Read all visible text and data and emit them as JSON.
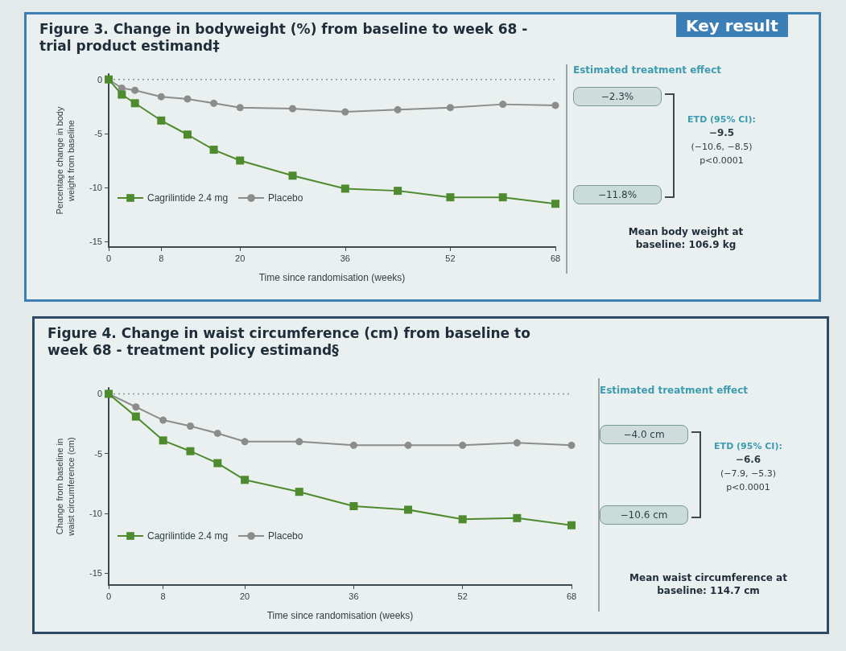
{
  "chart_data": [
    {
      "type": "line",
      "title": "Figure 3. Change in bodyweight (%) from baseline to week 68 - trial product estimand‡",
      "xlabel": "Time since randomisation (weeks)",
      "ylabel": "Percentage change in body\nweight from baseline",
      "x": [
        0,
        2,
        4,
        8,
        12,
        16,
        20,
        28,
        36,
        44,
        52,
        60,
        68
      ],
      "series": [
        {
          "name": "Cagrilintide 2.4 mg",
          "color": "#4e8a2e",
          "marker": "square",
          "values": [
            0,
            -1.4,
            -2.2,
            -3.8,
            -5.1,
            -6.5,
            -7.5,
            -8.9,
            -10.1,
            -10.3,
            -10.9,
            -10.9,
            -11.5
          ]
        },
        {
          "name": "Placebo",
          "color": "#8c8c8c",
          "marker": "circle",
          "values": [
            0,
            -0.8,
            -1.0,
            -1.6,
            -1.8,
            -2.2,
            -2.6,
            -2.7,
            -3.0,
            -2.8,
            -2.6,
            -2.3,
            -2.4
          ]
        }
      ],
      "xlim": [
        0,
        68
      ],
      "xticks": [
        0,
        8,
        20,
        36,
        52,
        68
      ],
      "ylim": [
        -15.5,
        0.5
      ],
      "yticks": [
        0,
        -5,
        -10,
        -15
      ],
      "grid": false,
      "legend": "bottom left",
      "line_style": "solid",
      "ref_lines": [
        {
          "axis": "y",
          "value": 0,
          "line_style": "dotted"
        }
      ],
      "annotations": [
        "Estimated treatment effect",
        "−2.3%",
        "−11.8%",
        "ETD (95% CI):",
        "−9.5",
        "(−10.6, −8.5)",
        "p<0.0001",
        "Mean body weight at baseline: 106.9 kg",
        "Key result"
      ]
    },
    {
      "type": "line",
      "title": "Figure 4. Change in waist circumference (cm) from baseline to week 68 - treatment policy estimand§",
      "xlabel": "Time since randomisation (weeks)",
      "ylabel": "Change from baseline in\nwaist circumference (cm)",
      "x": [
        0,
        4,
        8,
        12,
        16,
        20,
        28,
        36,
        44,
        52,
        60,
        68
      ],
      "series": [
        {
          "name": "Cagrilintide 2.4 mg",
          "color": "#4e8a2e",
          "marker": "square",
          "values": [
            0,
            -1.9,
            -3.9,
            -4.8,
            -5.8,
            -7.2,
            -8.2,
            -9.4,
            -9.7,
            -10.5,
            -10.4,
            -11.0
          ]
        },
        {
          "name": "Placebo",
          "color": "#8c8c8c",
          "marker": "circle",
          "values": [
            0,
            -1.1,
            -2.2,
            -2.7,
            -3.3,
            -4.0,
            -4.0,
            -4.3,
            -4.3,
            -4.3,
            -4.1,
            -4.3
          ]
        }
      ],
      "xlim": [
        0,
        68
      ],
      "xticks": [
        0,
        8,
        20,
        36,
        52,
        68
      ],
      "ylim": [
        -16,
        0.5
      ],
      "yticks": [
        0,
        -5,
        -10,
        -15
      ],
      "grid": false,
      "legend": "bottom left",
      "line_style": "solid",
      "ref_lines": [
        {
          "axis": "y",
          "value": 0,
          "line_style": "dotted"
        }
      ],
      "annotations": [
        "Estimated treatment effect",
        "−4.0 cm",
        "−10.6 cm",
        "ETD (95% CI):",
        "−6.6",
        "(−7.9, −5.3)",
        "p<0.0001",
        "Mean waist circumference at baseline: 114.7 cm"
      ]
    }
  ]
}
